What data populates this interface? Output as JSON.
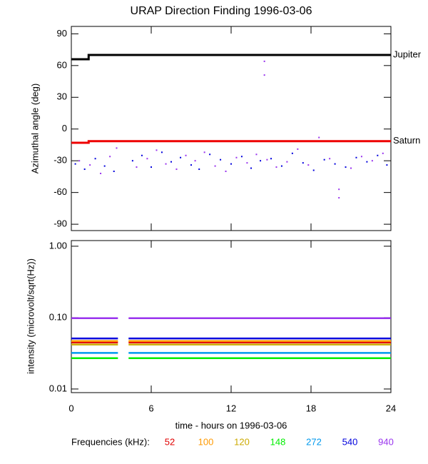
{
  "chart_data": [
    {
      "type": "scatter",
      "title": "URAP Direction Finding  1996-03-06",
      "y_label": "Azimuthal angle (deg)",
      "xlim": [
        0,
        24
      ],
      "xticks": [
        0,
        6,
        12,
        18,
        24
      ],
      "ylim": [
        -96,
        97
      ],
      "yticks": [
        90,
        60,
        30,
        0,
        -30,
        -60,
        -90
      ],
      "series": [
        {
          "name": "Jupiter",
          "color": "#000000",
          "style": "line",
          "x": [
            0,
            1.3,
            1.3,
            24
          ],
          "values": [
            66,
            66,
            70,
            70
          ]
        },
        {
          "name": "Saturn",
          "color": "#ee0000",
          "style": "line",
          "x": [
            0,
            1.3,
            1.3,
            24
          ],
          "values": [
            -13,
            -13,
            -11.5,
            -11.5
          ]
        },
        {
          "color": "#0000dd",
          "style": "points",
          "x": [
            0.3,
            1.0,
            1.8,
            2.5,
            3.2,
            4.6,
            5.3,
            6.0,
            6.8,
            7.5,
            8.2,
            9.0,
            9.6,
            10.4,
            11.2,
            12.0,
            12.8,
            13.5,
            14.2,
            15.0,
            15.8,
            16.6,
            17.4,
            18.2,
            19.0,
            19.8,
            20.6,
            21.4,
            22.2,
            23.0,
            23.7
          ],
          "values": [
            -33,
            -38,
            -28,
            -35,
            -40,
            -30,
            -25,
            -36,
            -22,
            -31,
            -27,
            -34,
            -38,
            -24,
            -29,
            -33,
            -26,
            -37,
            -30,
            -28,
            -35,
            -23,
            -32,
            -39,
            -29,
            -33,
            -36,
            -27,
            -31,
            -25,
            -34
          ]
        },
        {
          "color": "#9933ee",
          "style": "points",
          "x": [
            0.6,
            1.4,
            2.2,
            2.9,
            3.4,
            4.9,
            5.7,
            6.4,
            7.1,
            7.9,
            8.6,
            9.3,
            10.0,
            10.8,
            11.6,
            12.4,
            13.2,
            13.9,
            14.5,
            14.5,
            14.7,
            15.4,
            16.2,
            17.0,
            17.8,
            18.6,
            19.4,
            20.1,
            20.1,
            21.0,
            21.8,
            22.6,
            23.4
          ],
          "values": [
            -30,
            -34,
            -42,
            -26,
            -18,
            -36,
            -28,
            -20,
            -33,
            -38,
            -25,
            -30,
            -22,
            -35,
            -40,
            -27,
            -32,
            -24,
            64,
            51,
            -29,
            -36,
            -31,
            -19,
            -34,
            -8,
            -28,
            -57,
            -65,
            -37,
            -26,
            -30,
            -23
          ]
        }
      ]
    },
    {
      "type": "line",
      "y_label": "intensity (microvolt/sqrt(Hz))",
      "x_label": "time - hours on 1996-03-06",
      "legend_title": "Frequencies (kHz):",
      "xlim": [
        0,
        24
      ],
      "xticks": [
        0,
        6,
        12,
        18,
        24
      ],
      "ylog": true,
      "ylim": [
        0.0089,
        1.2
      ],
      "yticks": [
        {
          "value": 1,
          "label": "1.00"
        },
        {
          "value": 0.1,
          "label": "0.10"
        },
        0.01
      ],
      "series": [
        {
          "name": "52",
          "color": "#e00000",
          "x": [
            0,
            3.5,
            3.9,
            4.3,
            24
          ],
          "values": [
            0.045,
            0.045,
            null,
            0.045,
            0.045
          ]
        },
        {
          "name": "100",
          "color": "#ff9900",
          "x": [
            0,
            3.5,
            3.9,
            4.3,
            24
          ],
          "values": [
            0.047,
            0.047,
            null,
            0.047,
            0.047
          ]
        },
        {
          "name": "120",
          "color": "#ccaa00",
          "x": [
            0,
            3.5,
            3.9,
            4.3,
            24
          ],
          "values": [
            0.042,
            0.042,
            null,
            0.042,
            0.042
          ]
        },
        {
          "name": "148",
          "color": "#00ee00",
          "x": [
            0,
            3.5,
            3.9,
            4.3,
            24
          ],
          "values": [
            0.027,
            0.027,
            null,
            0.027,
            0.027
          ]
        },
        {
          "name": "272",
          "color": "#0099ee",
          "x": [
            0,
            3.5,
            3.9,
            4.3,
            24
          ],
          "values": [
            0.032,
            0.032,
            null,
            0.032,
            0.032
          ]
        },
        {
          "name": "540",
          "color": "#0000dd",
          "x": [
            0,
            3.5,
            3.9,
            4.3,
            24
          ],
          "values": [
            0.051,
            0.051,
            null,
            0.051,
            0.051
          ]
        },
        {
          "name": "940",
          "color": "#9933ee",
          "x": [
            0,
            3.5,
            3.9,
            4.3,
            24
          ],
          "values": [
            0.098,
            0.098,
            null,
            0.098,
            0.098
          ]
        }
      ]
    }
  ]
}
